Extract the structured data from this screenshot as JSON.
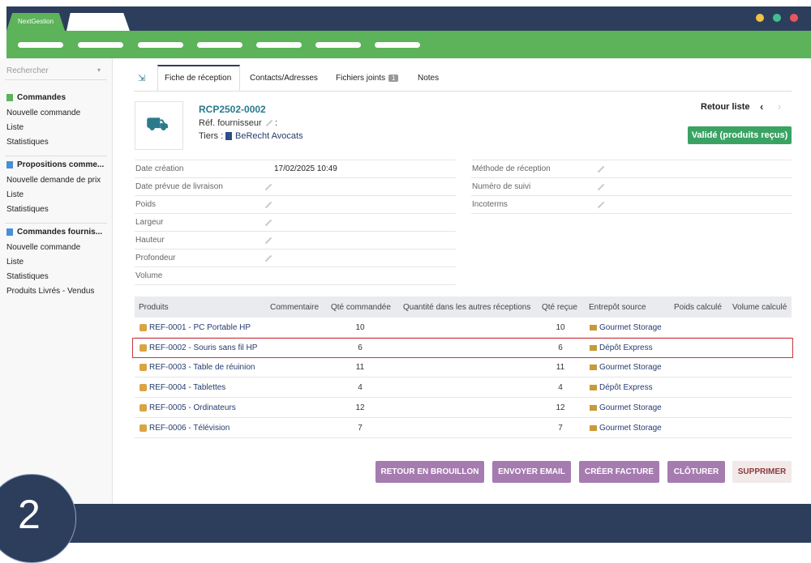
{
  "app": {
    "name": "NextGestion"
  },
  "sidebar": {
    "search": "Rechercher",
    "sections": [
      {
        "title": "Commandes",
        "items": [
          "Nouvelle commande",
          "Liste",
          "Statistiques"
        ]
      },
      {
        "title": "Propositions comme...",
        "items": [
          "Nouvelle demande de prix",
          "Liste",
          "Statistiques"
        ]
      },
      {
        "title": "Commandes fournis...",
        "items": [
          "Nouvelle commande",
          "Liste",
          "Statistiques",
          "Produits Livrés - Vendus"
        ]
      }
    ]
  },
  "tabs": [
    {
      "label": "Fiche de réception",
      "active": true
    },
    {
      "label": "Contacts/Adresses"
    },
    {
      "label": "Fichiers joints",
      "badge": "1"
    },
    {
      "label": "Notes"
    }
  ],
  "record": {
    "ref": "RCP2502-0002",
    "supplier_ref_label": "Réf. fournisseur",
    "supplier_ref_sep": ":",
    "third_party_label": "Tiers :",
    "third_party": "BeRecht Avocats",
    "back": "Retour liste",
    "status": "Validé (produits reçus)"
  },
  "fields_left": [
    {
      "label": "Date création",
      "value": "17/02/2025 10:49"
    },
    {
      "label": "Date prévue de livraison",
      "editable": true
    },
    {
      "label": "Poids",
      "editable": true
    },
    {
      "label": "Largeur",
      "editable": true
    },
    {
      "label": "Hauteur",
      "editable": true
    },
    {
      "label": "Profondeur",
      "editable": true
    },
    {
      "label": "Volume"
    }
  ],
  "fields_right": [
    {
      "label": "Méthode de réception",
      "editable": true
    },
    {
      "label": "Numéro de suivi",
      "editable": true
    },
    {
      "label": "Incoterms",
      "editable": true
    }
  ],
  "table": {
    "headers": [
      "Produits",
      "Commentaire",
      "Qté commandée",
      "Quantité dans les autres réceptions",
      "Qté reçue",
      "Entrepôt source",
      "Poids calculé",
      "Volume calculé"
    ],
    "rows": [
      {
        "product": "REF-0001 - PC Portable HP",
        "qty_ordered": 10,
        "qty_received": 10,
        "warehouse": "Gourmet Storage"
      },
      {
        "product": "REF-0002 - Souris sans fil HP",
        "qty_ordered": 6,
        "qty_received": 6,
        "warehouse": "Dépôt Express",
        "highlighted": true
      },
      {
        "product": "REF-0003 - Table de réuinion",
        "qty_ordered": 11,
        "qty_received": 11,
        "warehouse": "Gourmet Storage"
      },
      {
        "product": "REF-0004 - Tablettes",
        "qty_ordered": 4,
        "qty_received": 4,
        "warehouse": "Dépôt Express"
      },
      {
        "product": "REF-0005 - Ordinateurs",
        "qty_ordered": 12,
        "qty_received": 12,
        "warehouse": "Gourmet Storage"
      },
      {
        "product": "REF-0006 - Télévision",
        "qty_ordered": 7,
        "qty_received": 7,
        "warehouse": "Gourmet Storage"
      }
    ]
  },
  "actions": [
    {
      "label": "RETOUR EN BROUILLON"
    },
    {
      "label": "ENVOYER EMAIL"
    },
    {
      "label": "CRÉER FACTURE"
    },
    {
      "label": "CLÔTURER"
    },
    {
      "label": "SUPPRIMER",
      "danger": true
    }
  ],
  "step": "2"
}
